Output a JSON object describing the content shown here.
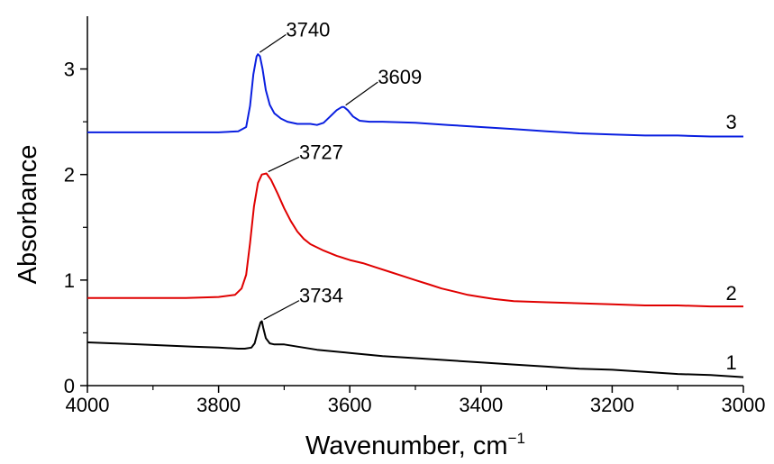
{
  "chart_data": {
    "type": "line",
    "title": "",
    "xlabel": "Wavenumber, cm",
    "xlabel_superscript": "−1",
    "ylabel": "Absorbance",
    "xlim": [
      4000,
      3000
    ],
    "x_reversed": true,
    "ylim": [
      0,
      3.5
    ],
    "grid": false,
    "legend": "none",
    "x_ticks": [
      4000,
      3800,
      3600,
      3400,
      3200,
      3000
    ],
    "y_ticks": [
      0,
      1,
      2,
      3
    ],
    "series": [
      {
        "name": "1",
        "color": "#000000",
        "points": [
          [
            4000,
            0.41
          ],
          [
            3960,
            0.4
          ],
          [
            3920,
            0.39
          ],
          [
            3880,
            0.38
          ],
          [
            3840,
            0.37
          ],
          [
            3800,
            0.36
          ],
          [
            3770,
            0.35
          ],
          [
            3760,
            0.35
          ],
          [
            3750,
            0.36
          ],
          [
            3745,
            0.4
          ],
          [
            3740,
            0.52
          ],
          [
            3736,
            0.6
          ],
          [
            3734,
            0.61
          ],
          [
            3732,
            0.55
          ],
          [
            3728,
            0.45
          ],
          [
            3722,
            0.4
          ],
          [
            3715,
            0.39
          ],
          [
            3700,
            0.39
          ],
          [
            3680,
            0.37
          ],
          [
            3650,
            0.34
          ],
          [
            3600,
            0.31
          ],
          [
            3550,
            0.28
          ],
          [
            3500,
            0.26
          ],
          [
            3450,
            0.24
          ],
          [
            3400,
            0.22
          ],
          [
            3350,
            0.2
          ],
          [
            3300,
            0.18
          ],
          [
            3250,
            0.16
          ],
          [
            3200,
            0.15
          ],
          [
            3150,
            0.13
          ],
          [
            3100,
            0.11
          ],
          [
            3050,
            0.1
          ],
          [
            3000,
            0.08
          ]
        ]
      },
      {
        "name": "2",
        "color": "#e00000",
        "points": [
          [
            4000,
            0.83
          ],
          [
            3950,
            0.83
          ],
          [
            3900,
            0.83
          ],
          [
            3850,
            0.83
          ],
          [
            3800,
            0.84
          ],
          [
            3775,
            0.86
          ],
          [
            3765,
            0.92
          ],
          [
            3758,
            1.05
          ],
          [
            3752,
            1.35
          ],
          [
            3746,
            1.7
          ],
          [
            3740,
            1.92
          ],
          [
            3734,
            2.0
          ],
          [
            3727,
            2.01
          ],
          [
            3720,
            1.95
          ],
          [
            3710,
            1.82
          ],
          [
            3700,
            1.68
          ],
          [
            3690,
            1.56
          ],
          [
            3680,
            1.46
          ],
          [
            3670,
            1.39
          ],
          [
            3660,
            1.34
          ],
          [
            3640,
            1.28
          ],
          [
            3620,
            1.23
          ],
          [
            3600,
            1.19
          ],
          [
            3580,
            1.16
          ],
          [
            3560,
            1.12
          ],
          [
            3540,
            1.08
          ],
          [
            3520,
            1.04
          ],
          [
            3500,
            1.0
          ],
          [
            3480,
            0.96
          ],
          [
            3460,
            0.92
          ],
          [
            3440,
            0.89
          ],
          [
            3420,
            0.86
          ],
          [
            3400,
            0.84
          ],
          [
            3380,
            0.82
          ],
          [
            3350,
            0.8
          ],
          [
            3300,
            0.79
          ],
          [
            3250,
            0.78
          ],
          [
            3200,
            0.77
          ],
          [
            3150,
            0.76
          ],
          [
            3100,
            0.76
          ],
          [
            3050,
            0.75
          ],
          [
            3000,
            0.75
          ]
        ]
      },
      {
        "name": "3",
        "color": "#0a1fe0",
        "points": [
          [
            4000,
            2.4
          ],
          [
            3950,
            2.4
          ],
          [
            3900,
            2.4
          ],
          [
            3850,
            2.4
          ],
          [
            3800,
            2.4
          ],
          [
            3770,
            2.41
          ],
          [
            3758,
            2.45
          ],
          [
            3752,
            2.65
          ],
          [
            3747,
            2.95
          ],
          [
            3742,
            3.12
          ],
          [
            3740,
            3.14
          ],
          [
            3737,
            3.12
          ],
          [
            3733,
            3.0
          ],
          [
            3728,
            2.8
          ],
          [
            3722,
            2.66
          ],
          [
            3715,
            2.58
          ],
          [
            3705,
            2.53
          ],
          [
            3695,
            2.5
          ],
          [
            3680,
            2.48
          ],
          [
            3670,
            2.48
          ],
          [
            3660,
            2.48
          ],
          [
            3650,
            2.47
          ],
          [
            3640,
            2.49
          ],
          [
            3630,
            2.55
          ],
          [
            3620,
            2.61
          ],
          [
            3612,
            2.64
          ],
          [
            3609,
            2.64
          ],
          [
            3603,
            2.61
          ],
          [
            3595,
            2.55
          ],
          [
            3585,
            2.51
          ],
          [
            3570,
            2.5
          ],
          [
            3550,
            2.5
          ],
          [
            3500,
            2.49
          ],
          [
            3450,
            2.47
          ],
          [
            3400,
            2.45
          ],
          [
            3350,
            2.43
          ],
          [
            3300,
            2.41
          ],
          [
            3250,
            2.39
          ],
          [
            3200,
            2.38
          ],
          [
            3150,
            2.37
          ],
          [
            3100,
            2.37
          ],
          [
            3050,
            2.36
          ],
          [
            3000,
            2.36
          ]
        ]
      }
    ],
    "annotations": [
      {
        "text": "3740",
        "point": [
          3740,
          3.14
        ],
        "label_at": [
          3700,
          3.36
        ]
      },
      {
        "text": "3609",
        "point": [
          3609,
          2.64
        ],
        "label_at": [
          3560,
          2.91
        ]
      },
      {
        "text": "3727",
        "point": [
          3727,
          2.01
        ],
        "label_at": [
          3680,
          2.2
        ]
      },
      {
        "text": "3734",
        "point": [
          3734,
          0.61
        ],
        "label_at": [
          3680,
          0.84
        ]
      }
    ],
    "curve_labels": [
      {
        "text": "3",
        "at": [
          3010,
          2.5
        ]
      },
      {
        "text": "2",
        "at": [
          3010,
          0.88
        ]
      },
      {
        "text": "1",
        "at": [
          3010,
          0.22
        ]
      }
    ]
  }
}
